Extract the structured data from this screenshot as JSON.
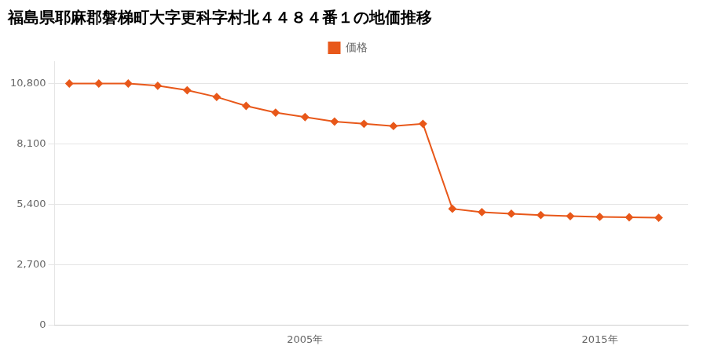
{
  "chart_data": {
    "type": "line",
    "title": "福島県耶麻郡磐梯町大字更科字村北４４８４番１の地価推移",
    "x": [
      1997,
      1998,
      1999,
      2000,
      2001,
      2002,
      2003,
      2004,
      2005,
      2006,
      2007,
      2008,
      2009,
      2010,
      2011,
      2012,
      2013,
      2014,
      2015,
      2016,
      2017
    ],
    "series": [
      {
        "name": "価格",
        "color": "#e8581a",
        "marker": "diamond",
        "values": [
          10800,
          10800,
          10800,
          10700,
          10500,
          10200,
          9800,
          9500,
          9300,
          9100,
          9000,
          8900,
          9000,
          5200,
          5050,
          4980,
          4920,
          4870,
          4840,
          4820,
          4800
        ]
      }
    ],
    "xlim": [
      1996.5,
      2018
    ],
    "xticks": [
      {
        "value": 2005,
        "label": "2005年"
      },
      {
        "value": 2015,
        "label": "2015年"
      }
    ],
    "ylim": [
      0,
      11800
    ],
    "yticks": [
      0,
      {
        "value": 2700,
        "label": "2,700"
      },
      {
        "value": 5400,
        "label": "5,400"
      },
      {
        "value": 8100,
        "label": "8,100"
      },
      {
        "value": 10800,
        "label": "10,800"
      }
    ],
    "grid": "y",
    "legend": "top"
  }
}
